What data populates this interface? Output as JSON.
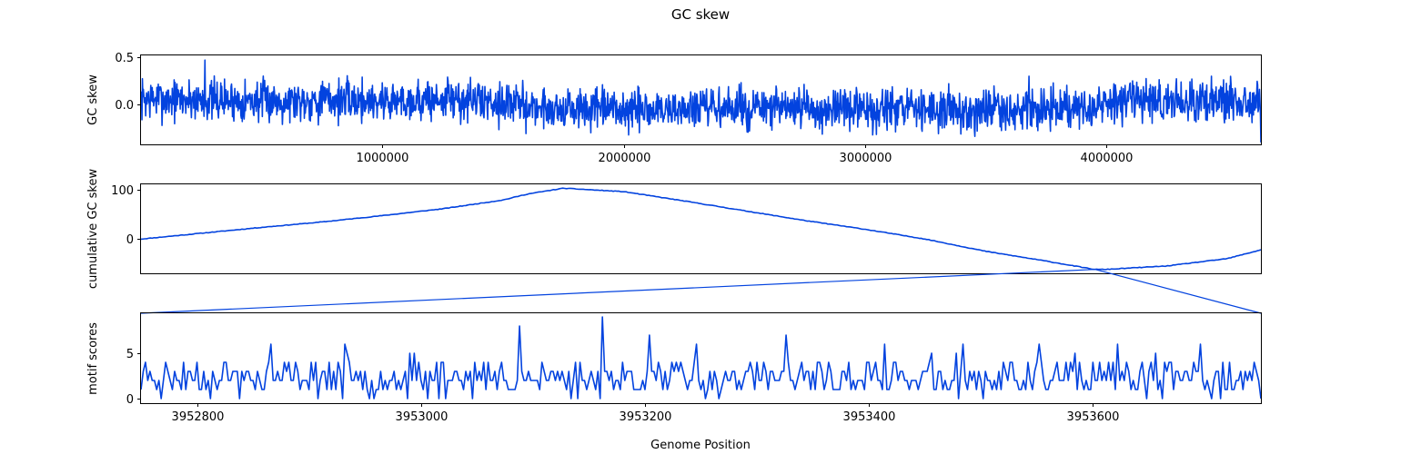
{
  "colors": {
    "series": "#0343df"
  },
  "chart_data": [
    {
      "id": "gc-skew",
      "type": "line",
      "title": "GC skew",
      "ylabel": "GC skew",
      "xlim": [
        0,
        4640000
      ],
      "ylim": [
        -0.42,
        0.52
      ],
      "xticks": [
        1000000,
        2000000,
        3000000,
        4000000
      ],
      "xtick_labels": [
        "1000000",
        "2000000",
        "3000000",
        "4000000"
      ],
      "yticks": [
        0.0,
        0.5
      ],
      "ytick_labels": [
        "0.0",
        "0.5"
      ],
      "series": [
        {
          "x": [
            0,
            250000,
            500000,
            750000,
            1000000,
            1250000,
            1500000,
            1600000,
            1750000,
            2000000,
            2250000,
            2500000,
            2750000,
            3000000,
            3250000,
            3500000,
            3750000,
            3950000,
            4000000,
            4250000,
            4500000,
            4640000
          ],
          "y": [
            0.06,
            0.05,
            0.04,
            0.05,
            0.04,
            0.05,
            0.03,
            -0.02,
            -0.05,
            -0.06,
            -0.05,
            -0.04,
            -0.05,
            -0.06,
            -0.05,
            -0.06,
            -0.05,
            -0.04,
            0.02,
            0.04,
            0.05,
            0.04
          ],
          "noise_amplitude": 0.12
        }
      ],
      "peaks": [
        {
          "x": 265000,
          "y": 0.47
        },
        {
          "x": 1270000,
          "y": 0.29
        },
        {
          "x": 3680000,
          "y": 0.3
        },
        {
          "x": 4435000,
          "y": 0.3
        },
        {
          "x": 2020000,
          "y": -0.32
        },
        {
          "x": 4640000,
          "y": -0.4
        }
      ]
    },
    {
      "id": "cumulative-gc-skew",
      "type": "line",
      "ylabel": "cumulative GC skew",
      "xlim": [
        0,
        4640000
      ],
      "ylim": [
        -70,
        112
      ],
      "yticks": [
        0,
        100
      ],
      "ytick_labels": [
        "0",
        "100"
      ],
      "series": [
        {
          "x": [
            0,
            250000,
            500000,
            750000,
            1000000,
            1250000,
            1500000,
            1600000,
            1750000,
            2000000,
            2250000,
            2500000,
            2750000,
            3000000,
            3250000,
            3500000,
            3750000,
            3950000,
            4000000,
            4250000,
            4500000,
            4640000
          ],
          "y": [
            0,
            12,
            24,
            35,
            48,
            62,
            80,
            92,
            104,
            97,
            78,
            58,
            38,
            20,
            0,
            -25,
            -45,
            -62,
            -62,
            -55,
            -40,
            -22
          ]
        }
      ]
    },
    {
      "id": "motif-scores",
      "type": "line",
      "ylabel": "motif scores",
      "xlabel": "Genome Position",
      "xlim": [
        3952750,
        3953750
      ],
      "ylim": [
        -0.5,
        9.4
      ],
      "xticks": [
        3952800,
        3953000,
        3953200,
        3953400,
        3953600
      ],
      "xtick_labels": [
        "3952800",
        "3953000",
        "3953200",
        "3953400",
        "3953600"
      ],
      "yticks": [
        0,
        5
      ],
      "ytick_labels": [
        "0",
        "5"
      ],
      "series": [
        {
          "x_start": 3952750,
          "x_step": 2,
          "typical_range": [
            0,
            5
          ],
          "mean": 2.3,
          "peaks": [
            {
              "x": 3952866,
              "y": 6
            },
            {
              "x": 3952932,
              "y": 6
            },
            {
              "x": 3953088,
              "y": 8
            },
            {
              "x": 3953162,
              "y": 9
            },
            {
              "x": 3953204,
              "y": 7
            },
            {
              "x": 3953246,
              "y": 6
            },
            {
              "x": 3953326,
              "y": 7
            },
            {
              "x": 3953414,
              "y": 6
            },
            {
              "x": 3953484,
              "y": 6
            },
            {
              "x": 3953552,
              "y": 6
            },
            {
              "x": 3953622,
              "y": 6
            },
            {
              "x": 3953696,
              "y": 6
            }
          ]
        }
      ]
    }
  ],
  "zoom": {
    "from_x": 3952750,
    "to_x": 3953750,
    "cumulative_y": -62
  }
}
